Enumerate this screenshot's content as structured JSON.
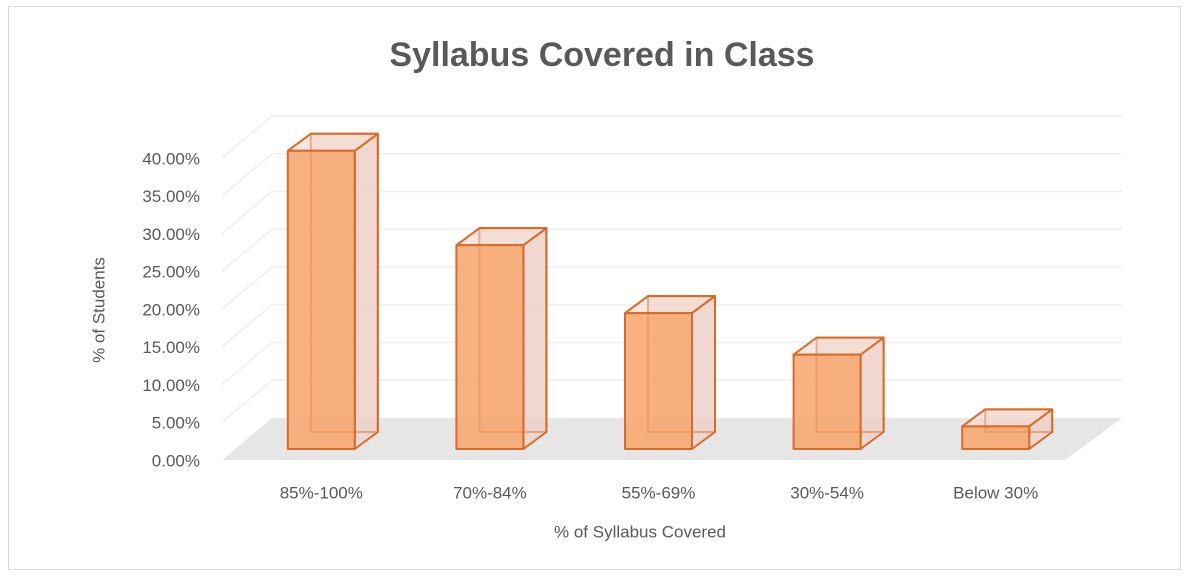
{
  "chart_data": {
    "type": "bar3d",
    "title": "Syllabus Covered in Class",
    "x_label": "% of Syllabus Covered",
    "y_label": "% of Students",
    "categories": [
      "85%-100%",
      "70%-84%",
      "55%-69%",
      "30%-54%",
      "Below 30%"
    ],
    "values": [
      39.5,
      27,
      18,
      12.5,
      3
    ],
    "color": "#f7a46b",
    "ylim": [
      0,
      40
    ],
    "yticks": [
      {
        "value": 0,
        "label": "0.00%"
      },
      {
        "value": 5,
        "label": "5.00%"
      },
      {
        "value": 10,
        "label": "10.00%"
      },
      {
        "value": 15,
        "label": "15.00%"
      },
      {
        "value": 20,
        "label": "20.00%"
      },
      {
        "value": 25,
        "label": "25.00%"
      },
      {
        "value": 30,
        "label": "30.00%"
      },
      {
        "value": 35,
        "label": "35.00%"
      },
      {
        "value": 40,
        "label": "40.00%"
      }
    ],
    "grid": true
  }
}
